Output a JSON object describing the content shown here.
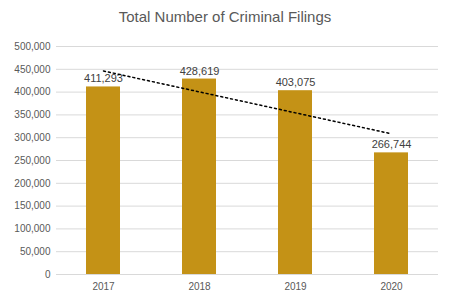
{
  "chart_data": {
    "type": "bar",
    "title": "Total Number of Criminal Filings",
    "categories": [
      "2017",
      "2018",
      "2019",
      "2020"
    ],
    "series": [
      {
        "type": "bar",
        "color": "#c49216",
        "values": [
          411293,
          428619,
          403075,
          266744
        ],
        "value_labels": [
          "411,293",
          "428,619",
          "403,075",
          "266,744"
        ]
      },
      {
        "type": "line",
        "line_style": "dotted",
        "color": "#000000",
        "values": [
          446311,
          400392,
          354473,
          308554
        ]
      }
    ],
    "ylim": [
      0,
      500000
    ],
    "yticks": [
      0,
      {
        "value": 50000,
        "label": "50,000"
      },
      {
        "value": 100000,
        "label": "100,000"
      },
      {
        "value": 150000,
        "label": "150,000"
      },
      {
        "value": 200000,
        "label": "200,000"
      },
      {
        "value": 250000,
        "label": "250,000"
      },
      {
        "value": 300000,
        "label": "300,000"
      },
      {
        "value": 350000,
        "label": "350,000"
      },
      {
        "value": 400000,
        "label": "400,000"
      },
      {
        "value": 450000,
        "label": "450,000"
      },
      {
        "value": 500000,
        "label": "500,000"
      }
    ],
    "grid": true,
    "data_labels": true
  }
}
